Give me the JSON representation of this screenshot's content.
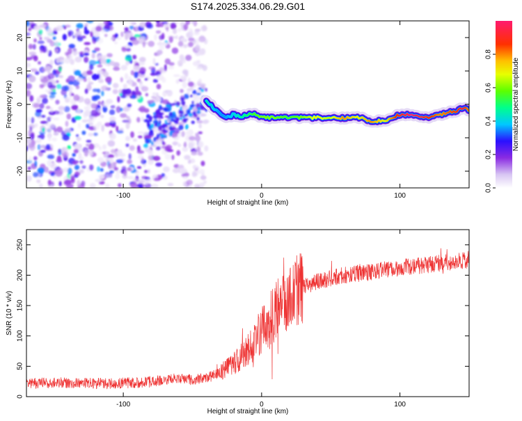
{
  "title": "S174.2025.334.06.29.G01",
  "chart_data": [
    {
      "type": "heatmap",
      "name": "spectrogram",
      "xlabel": "Height of straight line (km)",
      "ylabel": "Frequency (Hz)",
      "xlim": [
        -170,
        150
      ],
      "ylim": [
        -25,
        25
      ],
      "xticks": [
        -100,
        0,
        100
      ],
      "yticks": [
        -20,
        -10,
        0,
        10,
        20
      ],
      "colorbar": {
        "label": "Normalized spectral amplitude",
        "range": [
          0,
          1
        ],
        "ticks": [
          0.0,
          0.2,
          0.4,
          0.6,
          0.8
        ],
        "tick_labels": [
          "0.0",
          "0.2",
          "0.4",
          "0.6",
          "0.8"
        ]
      },
      "noise_region_x": [
        -170,
        -40
      ],
      "ridge": {
        "x": [
          -40,
          -35,
          -30,
          -25,
          -20,
          -15,
          -10,
          -5,
          0,
          10,
          20,
          30,
          40,
          50,
          60,
          70,
          80,
          90,
          100,
          110,
          120,
          130,
          140,
          147,
          150
        ],
        "freq": [
          1,
          -1,
          -3,
          -4,
          -3,
          -4,
          -3,
          -3,
          -4,
          -4,
          -4,
          -4,
          -4,
          -4,
          -4,
          -4,
          -5,
          -5,
          -3,
          -3,
          -4,
          -3,
          -2,
          -1,
          -2
        ],
        "amplitude": [
          0.45,
          0.4,
          0.35,
          0.35,
          0.4,
          0.45,
          0.5,
          0.55,
          0.6,
          0.6,
          0.55,
          0.6,
          0.7,
          0.65,
          0.8,
          0.7,
          0.8,
          0.7,
          0.9,
          1.0,
          0.9,
          0.8,
          0.85,
          0.95,
          0.8
        ]
      }
    },
    {
      "type": "line",
      "name": "snr",
      "xlabel": "Height of straight line (km)",
      "ylabel": "SNR (10 * v/v)",
      "xlim": [
        -170,
        150
      ],
      "ylim": [
        0,
        275
      ],
      "xticks": [
        -100,
        0,
        100
      ],
      "yticks": [
        0,
        50,
        100,
        150,
        200,
        250
      ],
      "color": "#ee3333",
      "series": [
        {
          "name": "SNR",
          "x": [
            -170,
            -150,
            -130,
            -110,
            -90,
            -80,
            -70,
            -60,
            -50,
            -40,
            -30,
            -20,
            -10,
            0,
            10,
            20,
            30,
            40,
            50,
            60,
            70,
            80,
            90,
            100,
            110,
            120,
            130,
            140,
            150
          ],
          "values": [
            22,
            23,
            22,
            22,
            23,
            25,
            27,
            30,
            28,
            30,
            40,
            55,
            75,
            110,
            140,
            165,
            180,
            190,
            195,
            200,
            203,
            205,
            210,
            212,
            215,
            217,
            220,
            222,
            225
          ]
        }
      ]
    }
  ]
}
